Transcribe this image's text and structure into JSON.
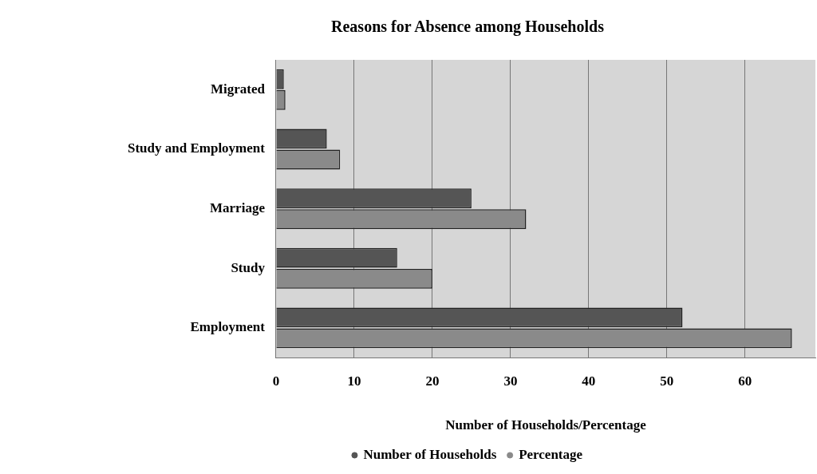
{
  "chart_data": {
    "type": "bar",
    "orientation": "horizontal",
    "title": "Reasons for Absence among Households",
    "xlabel": "Number of Households/Percentage",
    "categories": [
      "Migrated",
      "Study and Employment",
      "Marriage",
      "Study",
      "Employment"
    ],
    "series": [
      {
        "name": "Number of Households",
        "color": "#555555",
        "values": [
          1,
          6.5,
          25,
          15.5,
          52
        ]
      },
      {
        "name": "Percentage",
        "color": "#8a8a8a",
        "values": [
          1.2,
          8.2,
          32,
          20,
          66
        ]
      }
    ],
    "xlim": [
      0,
      69
    ],
    "xticks": [
      0,
      10,
      20,
      30,
      40,
      50,
      60
    ],
    "grid": "x",
    "legend": "bottom"
  }
}
